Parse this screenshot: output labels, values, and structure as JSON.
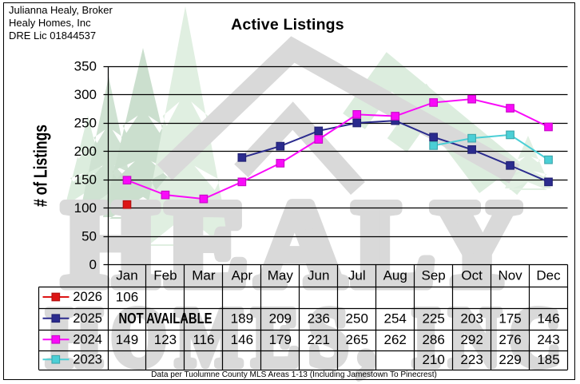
{
  "header": {
    "line1": "Julianna Healy, Broker",
    "line2": "Healy Homes, Inc",
    "line3": "DRE Lic 01844537"
  },
  "watermark": {
    "line1": "HEALY",
    "line2": "HOMES, INC",
    "text_color": "#d9d9d9",
    "tree_light": "#e2f0e3",
    "tree_medium": "#cfe3d1",
    "mountain_gray": "#d9d9d9"
  },
  "chart_data": {
    "type": "line",
    "title": "Active Listings",
    "ylabel": "# of Listings",
    "ylim": [
      0,
      350
    ],
    "ytick_step": 50,
    "grid": true,
    "legend_position": "table-left",
    "categories": [
      "Jan",
      "Feb",
      "Mar",
      "Apr",
      "May",
      "Jun",
      "Jul",
      "Aug",
      "Sep",
      "Oct",
      "Nov",
      "Dec"
    ],
    "series": [
      {
        "name": "2026",
        "color": "#dd1414",
        "values": [
          106,
          null,
          null,
          null,
          null,
          null,
          null,
          null,
          null,
          null,
          null,
          null
        ]
      },
      {
        "name": "2025",
        "color": "#2b2b8e",
        "values": [
          null,
          null,
          null,
          189,
          209,
          236,
          250,
          254,
          225,
          203,
          175,
          146
        ],
        "note": "NOT AVAILABLE",
        "note_span": [
          0,
          3
        ]
      },
      {
        "name": "2024",
        "color": "#f90af9",
        "values": [
          149,
          123,
          116,
          146,
          179,
          221,
          265,
          262,
          286,
          292,
          276,
          243
        ]
      },
      {
        "name": "2023",
        "color": "#4bcfd6",
        "values": [
          null,
          null,
          null,
          null,
          null,
          null,
          null,
          null,
          210,
          223,
          229,
          185
        ]
      }
    ],
    "footnote": "Data per Tuolumne County MLS Areas 1-13 (Including Jamestown To Pinecrest)"
  }
}
